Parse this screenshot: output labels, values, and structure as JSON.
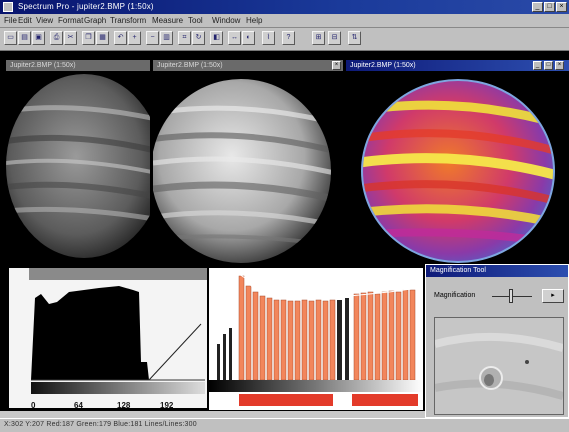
{
  "window": {
    "title": "Spectrum Pro - jupiter2.BMP (1:50x)",
    "controls": [
      "_",
      "□",
      "×"
    ]
  },
  "menu": [
    "File",
    "Edit",
    "View",
    "Format",
    "Graph",
    "Transform",
    "Measure",
    "Tool",
    "Window",
    "Help"
  ],
  "toolbar": {
    "buttons": [
      "new",
      "open",
      "save",
      "print",
      "cut",
      "copy",
      "paste",
      "undo",
      "zoom-in",
      "zoom-out",
      "histogram",
      "crop",
      "rotate",
      "filter",
      "measure",
      "color",
      "graph",
      "help"
    ]
  },
  "images": {
    "left": {
      "title": "Jupiter2.BMP (1:50x)"
    },
    "middle": {
      "title": "Jupiter2.BMP (1:50x)"
    },
    "right": {
      "title": "Jupiter2.BMP (1:50x)"
    }
  },
  "histogram": {
    "ticks": [
      "0",
      "64",
      "128",
      "192"
    ]
  },
  "magnification": {
    "title": "Magnification Tool",
    "label": "Magnification"
  },
  "status": {
    "text": "X:302  Y:207  Red:187 Green:179 Blue:181  Lines/Lines:300"
  },
  "colors": {
    "titlebar_active": "#0e1a78",
    "window_bg": "#c0c0c0",
    "bar_orange": "#f2865c",
    "heat_yellow": "#f0e23a",
    "heat_magenta": "#c02a9a"
  }
}
